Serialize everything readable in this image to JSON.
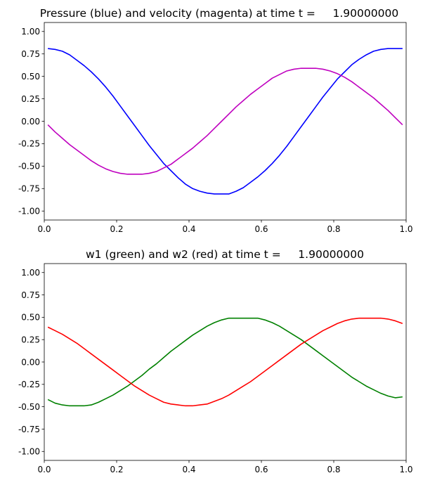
{
  "chart_data": [
    {
      "type": "line",
      "title": "Pressure (blue) and velocity (magenta) at time t =     1.90000000",
      "xlim": [
        0,
        1
      ],
      "ylim": [
        -1.1,
        1.1
      ],
      "xticks": [
        "0.0",
        "0.2",
        "0.4",
        "0.6",
        "0.8",
        "1.0"
      ],
      "yticks": [
        "-1.00",
        "-0.75",
        "-0.50",
        "-0.25",
        "0.00",
        "0.25",
        "0.50",
        "0.75",
        "1.00"
      ],
      "grid": false,
      "x": [
        0.01,
        0.03,
        0.05,
        0.07,
        0.09,
        0.11,
        0.13,
        0.15,
        0.17,
        0.19,
        0.21,
        0.23,
        0.25,
        0.27,
        0.29,
        0.31,
        0.33,
        0.35,
        0.37,
        0.39,
        0.41,
        0.43,
        0.45,
        0.47,
        0.49,
        0.51,
        0.53,
        0.55,
        0.57,
        0.59,
        0.61,
        0.63,
        0.65,
        0.67,
        0.69,
        0.71,
        0.73,
        0.75,
        0.77,
        0.79,
        0.81,
        0.83,
        0.85,
        0.87,
        0.89,
        0.91,
        0.93,
        0.95,
        0.97,
        0.99
      ],
      "series": [
        {
          "color": "#0000ff",
          "values": [
            0.81,
            0.8,
            0.78,
            0.74,
            0.68,
            0.62,
            0.55,
            0.47,
            0.38,
            0.28,
            0.17,
            0.06,
            -0.05,
            -0.16,
            -0.27,
            -0.37,
            -0.47,
            -0.55,
            -0.63,
            -0.7,
            -0.75,
            -0.78,
            -0.8,
            -0.81,
            -0.81,
            -0.81,
            -0.78,
            -0.74,
            -0.68,
            -0.62,
            -0.55,
            -0.47,
            -0.38,
            -0.28,
            -0.17,
            -0.06,
            0.05,
            0.16,
            0.27,
            0.37,
            0.47,
            0.55,
            0.63,
            0.69,
            0.74,
            0.78,
            0.8,
            0.81,
            0.81,
            0.81
          ]
        },
        {
          "color": "#bf00bf",
          "values": [
            -0.04,
            -0.12,
            -0.19,
            -0.26,
            -0.32,
            -0.38,
            -0.44,
            -0.49,
            -0.53,
            -0.56,
            -0.58,
            -0.59,
            -0.59,
            -0.59,
            -0.58,
            -0.56,
            -0.52,
            -0.48,
            -0.42,
            -0.36,
            -0.3,
            -0.23,
            -0.16,
            -0.08,
            0.0,
            0.08,
            0.16,
            0.23,
            0.3,
            0.36,
            0.42,
            0.48,
            0.52,
            0.56,
            0.58,
            0.59,
            0.59,
            0.59,
            0.58,
            0.56,
            0.53,
            0.49,
            0.44,
            0.38,
            0.32,
            0.26,
            0.19,
            0.12,
            0.04,
            -0.04
          ]
        }
      ]
    },
    {
      "type": "line",
      "title": "w1 (green) and w2 (red) at time t =     1.90000000",
      "xlim": [
        0,
        1
      ],
      "ylim": [
        -1.1,
        1.1
      ],
      "xticks": [
        "0.0",
        "0.2",
        "0.4",
        "0.6",
        "0.8",
        "1.0"
      ],
      "yticks": [
        "-1.00",
        "-0.75",
        "-0.50",
        "-0.25",
        "0.00",
        "0.25",
        "0.50",
        "0.75",
        "1.00"
      ],
      "grid": false,
      "x": [
        0.01,
        0.03,
        0.05,
        0.07,
        0.09,
        0.11,
        0.13,
        0.15,
        0.17,
        0.19,
        0.21,
        0.23,
        0.25,
        0.27,
        0.29,
        0.31,
        0.33,
        0.35,
        0.37,
        0.39,
        0.41,
        0.43,
        0.45,
        0.47,
        0.49,
        0.51,
        0.53,
        0.55,
        0.57,
        0.59,
        0.61,
        0.63,
        0.65,
        0.67,
        0.69,
        0.71,
        0.73,
        0.75,
        0.77,
        0.79,
        0.81,
        0.83,
        0.85,
        0.87,
        0.89,
        0.91,
        0.93,
        0.95,
        0.97,
        0.99
      ],
      "series": [
        {
          "color": "#008000",
          "values": [
            -0.42,
            -0.46,
            -0.48,
            -0.49,
            -0.49,
            -0.49,
            -0.48,
            -0.45,
            -0.41,
            -0.37,
            -0.32,
            -0.27,
            -0.21,
            -0.15,
            -0.08,
            -0.02,
            0.05,
            0.12,
            0.18,
            0.24,
            0.3,
            0.35,
            0.4,
            0.44,
            0.47,
            0.49,
            0.49,
            0.49,
            0.49,
            0.49,
            0.47,
            0.44,
            0.4,
            0.35,
            0.3,
            0.25,
            0.19,
            0.13,
            0.07,
            0.01,
            -0.05,
            -0.11,
            -0.17,
            -0.22,
            -0.27,
            -0.31,
            -0.35,
            -0.38,
            -0.4,
            -0.39
          ]
        },
        {
          "color": "#ff0000",
          "values": [
            0.39,
            0.35,
            0.31,
            0.26,
            0.21,
            0.15,
            0.09,
            0.03,
            -0.03,
            -0.09,
            -0.15,
            -0.21,
            -0.27,
            -0.32,
            -0.37,
            -0.41,
            -0.45,
            -0.47,
            -0.48,
            -0.49,
            -0.49,
            -0.48,
            -0.47,
            -0.44,
            -0.41,
            -0.37,
            -0.32,
            -0.27,
            -0.22,
            -0.16,
            -0.1,
            -0.04,
            0.02,
            0.08,
            0.14,
            0.2,
            0.25,
            0.3,
            0.35,
            0.39,
            0.43,
            0.46,
            0.48,
            0.49,
            0.49,
            0.49,
            0.49,
            0.48,
            0.46,
            0.43
          ]
        }
      ]
    }
  ]
}
